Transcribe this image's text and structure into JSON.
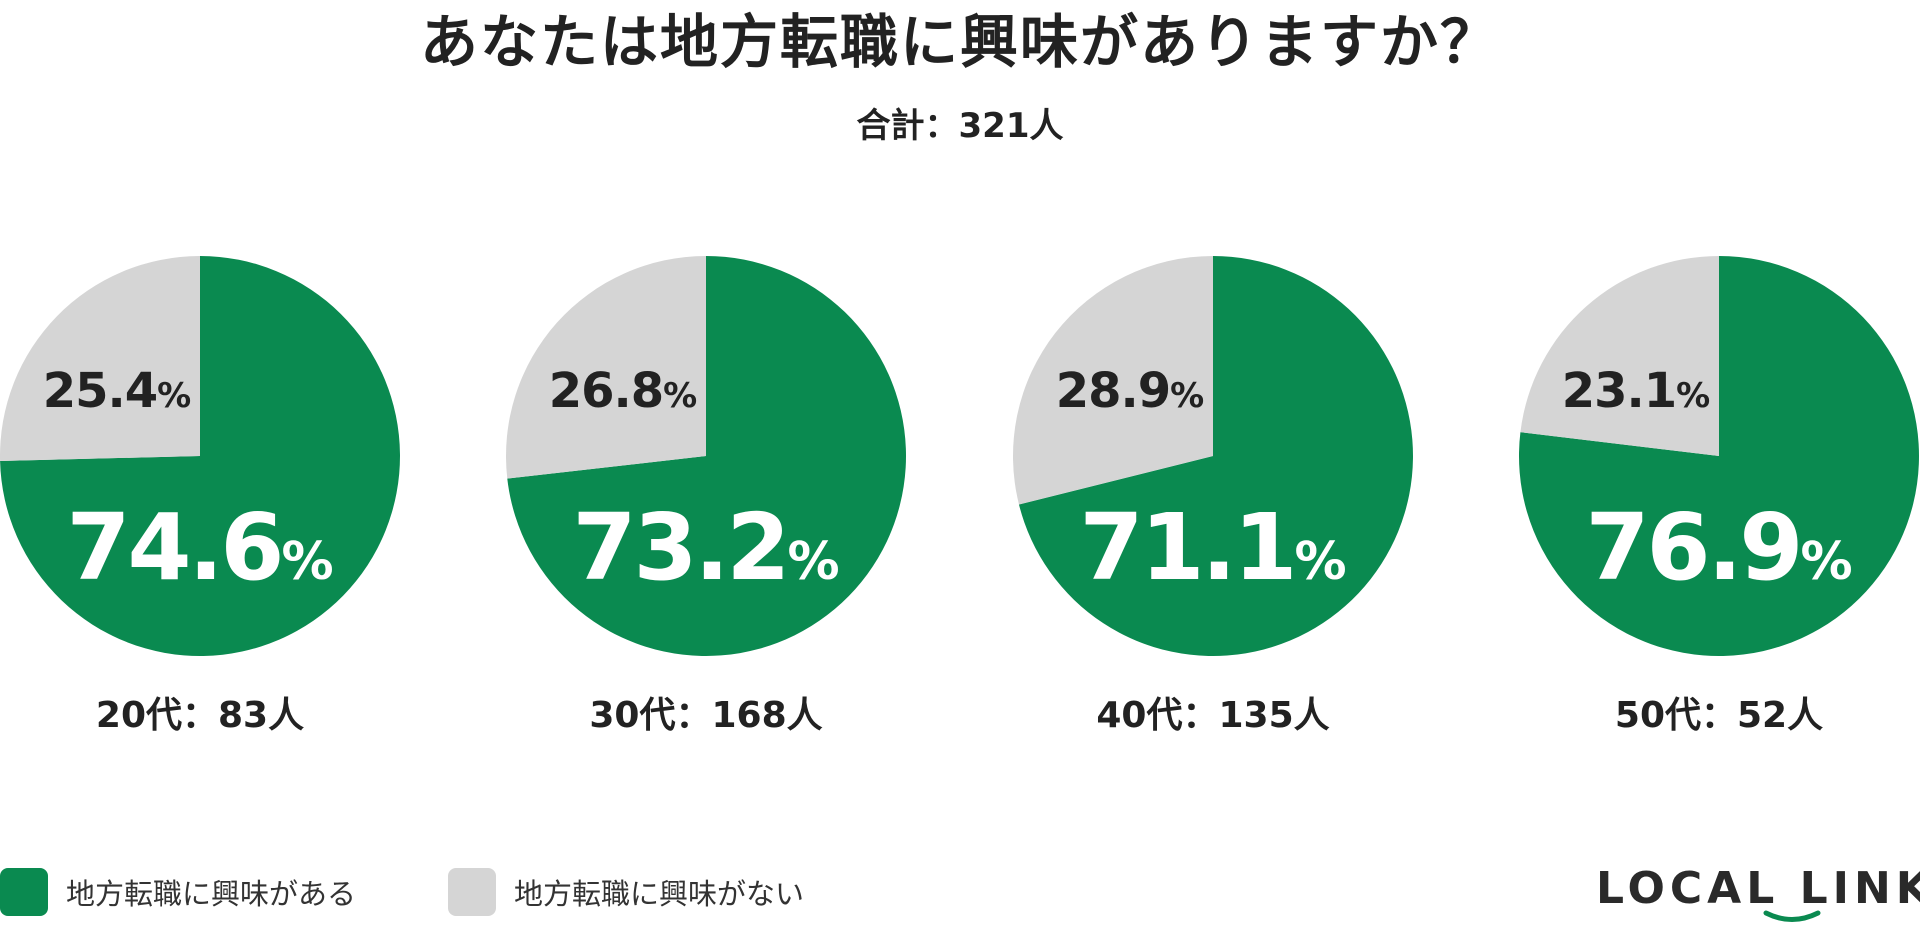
{
  "title": "あなたは地方転職に興味がありますか？",
  "total": "合計：321人",
  "colors": {
    "yes": "#0A8A50",
    "no": "#D5D5D5",
    "text": "#222222"
  },
  "legend": [
    {
      "label": "地方転職に興味がある",
      "color": "#0A8A50"
    },
    {
      "label": "地方転職に興味がない",
      "color": "#D5D5D5"
    }
  ],
  "logo": {
    "text": "LOCAL LINK"
  },
  "chart_data": [
    {
      "type": "pie",
      "label": "20代：83人",
      "slices": [
        {
          "name": "地方転職に興味がある",
          "value": 74.6,
          "display": "74.6"
        },
        {
          "name": "地方転職に興味がない",
          "value": 25.4,
          "display": "25.4"
        }
      ]
    },
    {
      "type": "pie",
      "label": "30代：168人",
      "slices": [
        {
          "name": "地方転職に興味がある",
          "value": 73.2,
          "display": "73.2"
        },
        {
          "name": "地方転職に興味がない",
          "value": 26.8,
          "display": "26.8"
        }
      ]
    },
    {
      "type": "pie",
      "label": "40代：135人",
      "slices": [
        {
          "name": "地方転職に興味がある",
          "value": 71.1,
          "display": "71.1"
        },
        {
          "name": "地方転職に興味がない",
          "value": 28.9,
          "display": "28.9"
        }
      ]
    },
    {
      "type": "pie",
      "label": "50代：52人",
      "slices": [
        {
          "name": "地方転職に興味がある",
          "value": 76.9,
          "display": "76.9"
        },
        {
          "name": "地方転職に興味がない",
          "value": 23.1,
          "display": "23.1"
        }
      ]
    }
  ]
}
